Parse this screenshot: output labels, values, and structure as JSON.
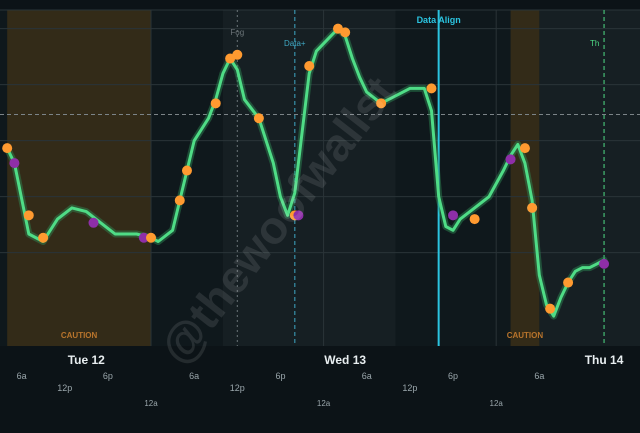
{
  "colors": {
    "background": "#0c1317",
    "plot_background": "#0f181c",
    "alt_band": "#1a2226",
    "caution_band": "#3a2f17",
    "caution_text": "#b8742c",
    "line": "#4fdc86",
    "line_glow": "#2f8f57",
    "marker_orange": "#ff9a30",
    "marker_purple": "#8e2ea8",
    "marker_teal": "#3fc3da",
    "data_align": "#2bc4e0",
    "day_label": "#e8eef0",
    "tick_label": "#9aa6ab",
    "grid": "#2a3438",
    "watermark": "rgba(255,255,255,0.10)"
  },
  "watermark": "@thewoofwallst",
  "chart_data": {
    "type": "line",
    "series": [
      {
        "values": [
          [
            -64,
            2.8
          ],
          [
            -62,
            2.4
          ],
          [
            -58,
            0.5
          ],
          [
            -54,
            0.3
          ],
          [
            -50,
            0.9
          ],
          [
            -46,
            1.2
          ],
          [
            -42,
            1.1
          ],
          [
            -38,
            0.8
          ],
          [
            -34,
            0.5
          ],
          [
            -28,
            0.5
          ],
          [
            -24,
            0.4
          ],
          [
            -22,
            0.3
          ],
          [
            -18,
            0.6
          ],
          [
            -16,
            1.4
          ],
          [
            -14,
            2.2
          ],
          [
            -12,
            3.0
          ],
          [
            -8,
            3.6
          ],
          [
            -6,
            4.1
          ],
          [
            -4,
            4.8
          ],
          [
            -2,
            5.2
          ],
          [
            0,
            4.9
          ],
          [
            2,
            4.1
          ],
          [
            6,
            3.6
          ],
          [
            10,
            2.4
          ],
          [
            12,
            1.5
          ],
          [
            14,
            1.0
          ],
          [
            16,
            1.6
          ],
          [
            18,
            3.2
          ],
          [
            20,
            4.8
          ],
          [
            22,
            5.4
          ],
          [
            24,
            5.6
          ],
          [
            26,
            5.8
          ],
          [
            28,
            6.0
          ],
          [
            30,
            5.8
          ],
          [
            32,
            5.2
          ],
          [
            34,
            4.7
          ],
          [
            36,
            4.3
          ],
          [
            40,
            4.0
          ],
          [
            44,
            4.2
          ],
          [
            48,
            4.4
          ],
          [
            52,
            4.4
          ],
          [
            54,
            3.8
          ],
          [
            56,
            1.5
          ],
          [
            58,
            0.7
          ],
          [
            60,
            0.6
          ],
          [
            62,
            0.9
          ],
          [
            66,
            1.2
          ],
          [
            70,
            1.5
          ],
          [
            74,
            2.2
          ],
          [
            76,
            2.6
          ],
          [
            78,
            2.9
          ],
          [
            80,
            2.4
          ],
          [
            82,
            1.4
          ],
          [
            84,
            -0.6
          ],
          [
            86,
            -1.4
          ],
          [
            88,
            -1.7
          ],
          [
            90,
            -1.2
          ],
          [
            92,
            -0.8
          ],
          [
            94,
            -0.5
          ],
          [
            96,
            -0.4
          ],
          [
            98,
            -0.4
          ],
          [
            100,
            -0.3
          ],
          [
            102,
            -0.2
          ]
        ]
      }
    ],
    "markers": [
      {
        "x": -64,
        "y": 2.8,
        "color": "orange"
      },
      {
        "x": -62,
        "y": 2.4,
        "color": "purple"
      },
      {
        "x": -58,
        "y": 1.0,
        "color": "orange"
      },
      {
        "x": -54,
        "y": 0.4,
        "color": "orange"
      },
      {
        "x": -40,
        "y": 0.8,
        "color": "purple"
      },
      {
        "x": -26,
        "y": 0.4,
        "color": "purple"
      },
      {
        "x": -24,
        "y": 0.4,
        "color": "orange"
      },
      {
        "x": -16,
        "y": 1.4,
        "color": "orange"
      },
      {
        "x": -14,
        "y": 2.2,
        "color": "orange"
      },
      {
        "x": -6,
        "y": 4.0,
        "color": "orange"
      },
      {
        "x": -2,
        "y": 5.2,
        "color": "orange"
      },
      {
        "x": 0,
        "y": 5.3,
        "color": "orange"
      },
      {
        "x": 6,
        "y": 3.6,
        "color": "orange"
      },
      {
        "x": 16,
        "y": 1.0,
        "color": "orange"
      },
      {
        "x": 17,
        "y": 1.0,
        "color": "purple"
      },
      {
        "x": 20,
        "y": 5.0,
        "color": "orange"
      },
      {
        "x": 28,
        "y": 6.0,
        "color": "orange"
      },
      {
        "x": 30,
        "y": 5.9,
        "color": "orange"
      },
      {
        "x": 40,
        "y": 4.0,
        "color": "orange"
      },
      {
        "x": 54,
        "y": 4.4,
        "color": "orange"
      },
      {
        "x": 60,
        "y": 1.0,
        "color": "purple"
      },
      {
        "x": 66,
        "y": 0.9,
        "color": "orange"
      },
      {
        "x": 76,
        "y": 2.5,
        "color": "purple"
      },
      {
        "x": 80,
        "y": 2.8,
        "color": "orange"
      },
      {
        "x": 82,
        "y": 1.2,
        "color": "teal"
      },
      {
        "x": 82,
        "y": 1.2,
        "color": "orange"
      },
      {
        "x": 87,
        "y": -1.5,
        "color": "orange"
      },
      {
        "x": 92,
        "y": -0.8,
        "color": "orange"
      },
      {
        "x": 102,
        "y": -0.3,
        "color": "purple"
      }
    ],
    "annotations": {
      "vlines": [
        {
          "x": 0,
          "label": "Fog",
          "style": "dotted",
          "color": "#6b7478"
        },
        {
          "x": 16,
          "label": "Data+",
          "style": "dashed",
          "color": "#3fa8c4"
        },
        {
          "x": 56,
          "label": "Data Align",
          "style": "solid",
          "color": "#2bc4e0"
        },
        {
          "x": 102,
          "label": "Th",
          "style": "dashed",
          "color": "#4fdc86"
        }
      ],
      "hline": {
        "y": 3.7,
        "style": "dashed"
      },
      "bands": [
        {
          "x0": -64,
          "x1": -24,
          "label": "CAUTION"
        },
        {
          "x0": 76,
          "x1": 84,
          "label": "CAUTION"
        }
      ],
      "alt_bands": [
        [
          -4,
          44
        ],
        [
          84,
          120
        ]
      ]
    },
    "x_axis": {
      "day_labels": [
        {
          "x": -42,
          "label": "Tue 12"
        },
        {
          "x": 30,
          "label": "Wed 13"
        },
        {
          "x": 102,
          "label": "Thu 14"
        }
      ],
      "hour_labels": [
        {
          "x": -60,
          "label": "6a"
        },
        {
          "x": -48,
          "label": "12p"
        },
        {
          "x": -36,
          "label": "6p"
        },
        {
          "x": -24,
          "label": "12a"
        },
        {
          "x": -12,
          "label": "6a"
        },
        {
          "x": 0,
          "label": "12p"
        },
        {
          "x": 12,
          "label": "6p"
        },
        {
          "x": 24,
          "label": "12a"
        },
        {
          "x": 36,
          "label": "6a"
        },
        {
          "x": 48,
          "label": "12p"
        },
        {
          "x": 60,
          "label": "6p"
        },
        {
          "x": 72,
          "label": "12a"
        },
        {
          "x": 84,
          "label": "6a"
        }
      ],
      "range": [
        -66,
        112
      ]
    },
    "y_axis": {
      "range": [
        -2.5,
        6.5
      ]
    },
    "grid": true
  }
}
